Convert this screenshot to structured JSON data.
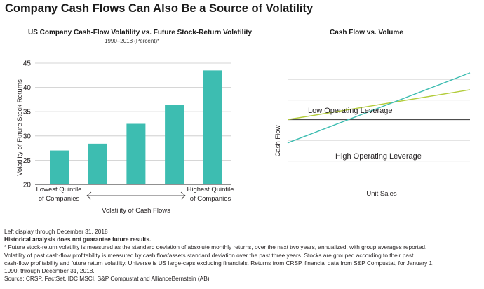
{
  "header": {
    "title": "Company Cash Flows Can Also Be a Source of Volatility"
  },
  "left_panel": {
    "title": "US Company Cash-Flow Volatility vs. Future Stock-Return Volatility",
    "subtitle": "1990–2018 (Percent)*"
  },
  "right_panel": {
    "title": "Cash Flow vs. Volume"
  },
  "colors": {
    "bar": "#3dbdb1",
    "teal_line": "#3dbdb1",
    "green_line": "#b3cc3a",
    "grid": "#c8c8c8",
    "axis": "#4d4d4d"
  },
  "chart_data": [
    {
      "type": "bar",
      "title": "US Company Cash-Flow Volatility vs. Future Stock-Return Volatility",
      "subtitle": "1990–2018 (Percent)*",
      "categories": [
        "Lowest Quintile of Companies",
        "",
        "",
        "",
        "Highest Quintile of Companies"
      ],
      "category_labels": {
        "low": [
          "Lowest Quintile",
          "of Companies"
        ],
        "high": [
          "Highest Quintile",
          "of Companies"
        ]
      },
      "values": [
        27.0,
        28.4,
        32.5,
        36.4,
        43.5
      ],
      "xlabel": "Volatility of Cash Flows",
      "ylabel": "Volatility of Future Stock Returns",
      "ylim": [
        20,
        45
      ],
      "yticks": [
        20,
        25,
        30,
        35,
        40,
        45
      ],
      "grid": true
    },
    {
      "type": "line",
      "title": "Cash Flow vs. Volume",
      "xlabel": "Unit Sales",
      "ylabel": "Cash Flow",
      "xlim": [
        0,
        10
      ],
      "ylim": [
        -5,
        5
      ],
      "series": [
        {
          "name": "Low Operating Leverage",
          "x": [
            0,
            10
          ],
          "y": [
            0,
            2.3
          ]
        },
        {
          "name": "High Operating Leverage",
          "x": [
            0,
            10
          ],
          "y": [
            -1.8,
            3.6
          ]
        }
      ]
    }
  ],
  "footnotes": {
    "line1": "Left display through December 31, 2018",
    "line2": "Historical analysis does not guarantee future results.",
    "line3": "* Future stock-return volatility is measured as the standard deviation of absolute monthly returns, over the next two years, annualized, with group averages reported.",
    "line4": "Volatility of past cash-flow profitability is measured by cash flow/assets standard deviation over the past three years. Stocks are grouped according to their past",
    "line5": "cash-flow profitability and future return volatility. Universe is US large-caps excluding financials. Returns from CRSP, financial data from S&P Compustat, for January 1,",
    "line6": "1990, through December 31, 2018.",
    "line7": "Source: CRSP, FactSet, IDC MSCI, S&P Compustat and AllianceBernstein (AB)"
  }
}
